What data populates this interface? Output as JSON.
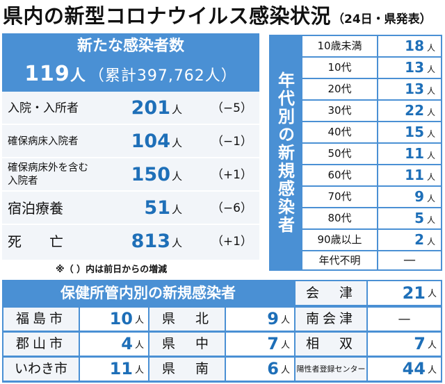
{
  "header": {
    "title": "県内の新型コロナウイルス感染状況",
    "subtitle": "（24日・県発表）"
  },
  "summary": {
    "title": "新たな感染者数",
    "count": "119",
    "unit": "人",
    "cumulative": "（累計397,762人）"
  },
  "status": [
    {
      "label": "入院・入所者",
      "value": "201",
      "unit": "人",
      "change": "（−5）"
    },
    {
      "label": "確保病床入院者",
      "value": "104",
      "unit": "人",
      "change": "（−1）"
    },
    {
      "label": "確保病床外を含む入院者",
      "value": "150",
      "unit": "人",
      "change": "（+1）"
    },
    {
      "label": "宿泊療養",
      "value": "51",
      "unit": "人",
      "change": "（−6）"
    },
    {
      "label": "死　　亡",
      "value": "813",
      "unit": "人",
      "change": "（+1）"
    }
  ],
  "note": "※（ ）内は前日からの増減",
  "age": {
    "title": "年代別の新規感染者",
    "unit": "人",
    "rows": [
      {
        "label": "10歳未満",
        "value": "18"
      },
      {
        "label": "10代",
        "value": "13"
      },
      {
        "label": "20代",
        "value": "13"
      },
      {
        "label": "30代",
        "value": "22"
      },
      {
        "label": "40代",
        "value": "15"
      },
      {
        "label": "50代",
        "value": "11"
      },
      {
        "label": "60代",
        "value": "11"
      },
      {
        "label": "70代",
        "value": "9"
      },
      {
        "label": "80代",
        "value": "5"
      },
      {
        "label": "90歳以上",
        "value": "2"
      },
      {
        "label": "年代不明",
        "value": "—"
      }
    ]
  },
  "health": {
    "title": "保健所管内別の新規感染者",
    "unit": "人",
    "aizu": {
      "label": "会　津",
      "value": "21"
    },
    "grid": [
      {
        "label": "福島市",
        "value": "10"
      },
      {
        "label": "県　北",
        "value": "9"
      },
      {
        "label": "南会津",
        "value": "—"
      },
      {
        "label": "郡山市",
        "value": "4"
      },
      {
        "label": "県　中",
        "value": "7"
      },
      {
        "label": "相　双",
        "value": "7"
      },
      {
        "label": "いわき市",
        "value": "11"
      },
      {
        "label": "県　南",
        "value": "6"
      },
      {
        "label": "陽性者登録センター",
        "value": "44"
      }
    ]
  }
}
